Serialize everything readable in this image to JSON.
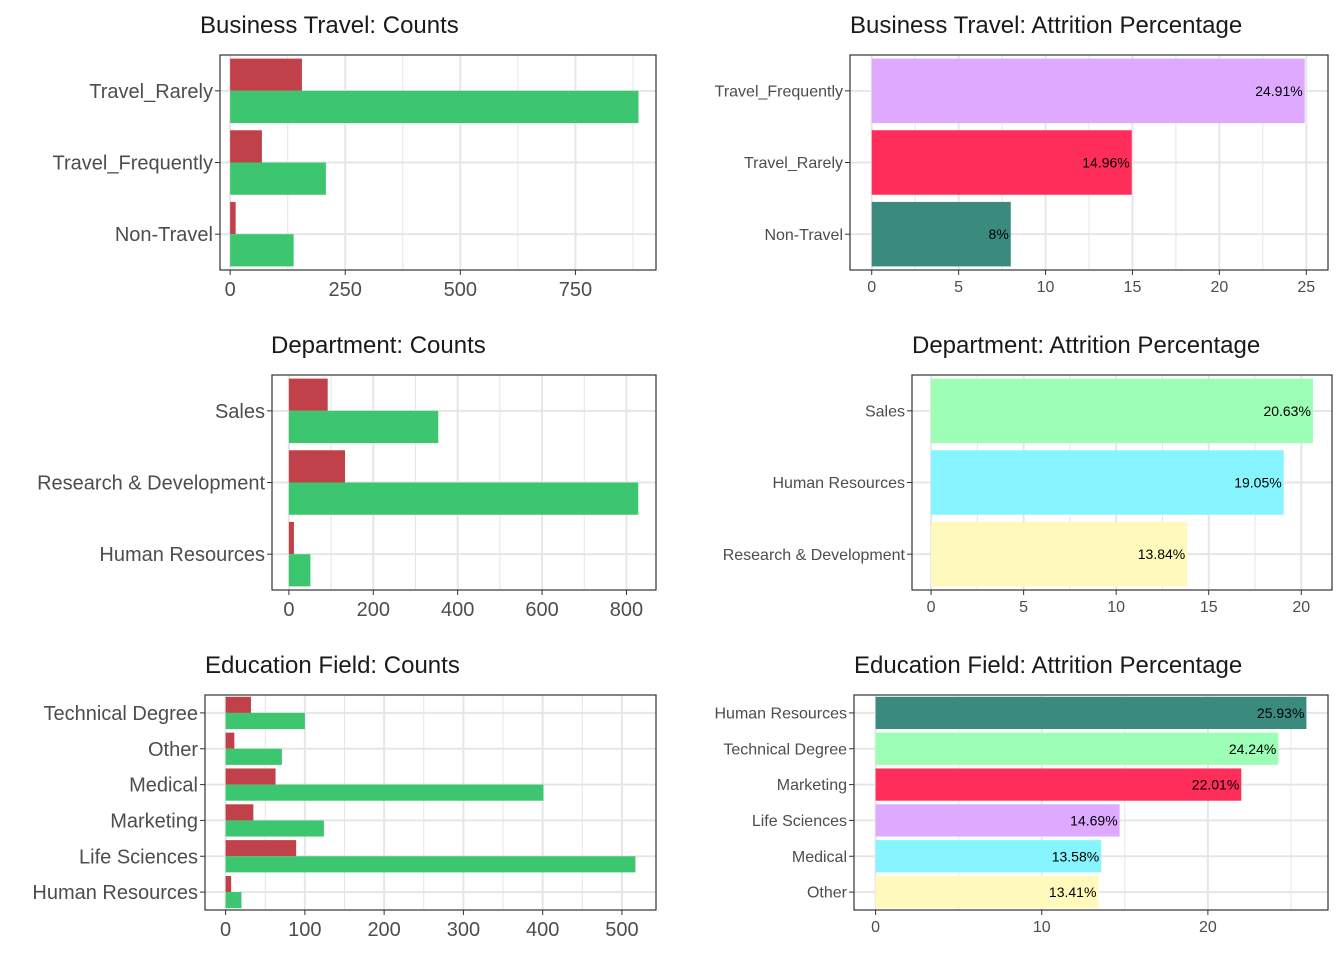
{
  "colors": {
    "attrition_yes": "#C0414A",
    "attrition_no": "#3CC66F",
    "grid": "#E6E6E6",
    "frame": "#333333",
    "text": "#1A1A1A",
    "tick_text": "#4D4D4D"
  },
  "chart_data": [
    {
      "id": "bt-counts",
      "type": "bar",
      "orientation": "horizontal",
      "title": "Business Travel: Counts",
      "categories": [
        "Non-Travel",
        "Travel_Frequently",
        "Travel_Rarely"
      ],
      "series": [
        {
          "color": "#C0414A",
          "values": [
            12,
            69,
            156
          ]
        },
        {
          "color": "#3CC66F",
          "values": [
            138,
            208,
            887
          ]
        }
      ],
      "xlim": [
        -22,
        925
      ],
      "xticks": [
        0,
        250,
        500,
        750
      ],
      "xtick_labels": [
        "0",
        "250",
        "500",
        "750"
      ],
      "grid": true
    },
    {
      "id": "bt-pct",
      "type": "bar",
      "orientation": "horizontal",
      "title": "Business Travel: Attrition Percentage",
      "categories": [
        "Non-Travel",
        "Travel_Rarely",
        "Travel_Frequently"
      ],
      "values": [
        8,
        14.96,
        24.91
      ],
      "data_labels": [
        "8%",
        "14.96%",
        "24.91%"
      ],
      "colors": [
        "#3A8A7E",
        "#FF2D5A",
        "#DEAAFF"
      ],
      "xlim": [
        -1.25,
        26.25
      ],
      "xticks": [
        0,
        5,
        10,
        15,
        20,
        25
      ],
      "xtick_labels": [
        "0",
        "5",
        "10",
        "15",
        "20",
        "25"
      ],
      "grid": true
    },
    {
      "id": "dept-counts",
      "type": "bar",
      "orientation": "horizontal",
      "title": "Department: Counts",
      "categories": [
        "Human Resources",
        "Research & Development",
        "Sales"
      ],
      "series": [
        {
          "color": "#C0414A",
          "values": [
            12,
            133,
            92
          ]
        },
        {
          "color": "#3CC66F",
          "values": [
            51,
            828,
            354
          ]
        }
      ],
      "xlim": [
        -40,
        870
      ],
      "xticks": [
        0,
        200,
        400,
        600,
        800
      ],
      "xtick_labels": [
        "0",
        "200",
        "400",
        "600",
        "800"
      ],
      "grid": true
    },
    {
      "id": "dept-pct",
      "type": "bar",
      "orientation": "horizontal",
      "title": "Department: Attrition Percentage",
      "categories": [
        "Research & Development",
        "Human Resources",
        "Sales"
      ],
      "values": [
        13.84,
        19.05,
        20.63
      ],
      "data_labels": [
        "13.84%",
        "19.05%",
        "20.63%"
      ],
      "colors": [
        "#FFFABB",
        "#86F5FF",
        "#9CFFB5"
      ],
      "xlim": [
        -1.03,
        21.66
      ],
      "xticks": [
        0,
        5,
        10,
        15,
        20
      ],
      "xtick_labels": [
        "0",
        "5",
        "10",
        "15",
        "20"
      ],
      "grid": true
    },
    {
      "id": "edu-counts",
      "type": "bar",
      "orientation": "horizontal",
      "title": "Education Field: Counts",
      "categories": [
        "Human Resources",
        "Life Sciences",
        "Marketing",
        "Medical",
        "Other",
        "Technical Degree"
      ],
      "series": [
        {
          "color": "#C0414A",
          "values": [
            7,
            89,
            35,
            63,
            11,
            32
          ]
        },
        {
          "color": "#3CC66F",
          "values": [
            20,
            517,
            124,
            401,
            71,
            100
          ]
        }
      ],
      "xlim": [
        -26,
        543
      ],
      "xticks": [
        0,
        100,
        200,
        300,
        400,
        500
      ],
      "xtick_labels": [
        "0",
        "100",
        "200",
        "300",
        "400",
        "500"
      ],
      "grid": true
    },
    {
      "id": "edu-pct",
      "type": "bar",
      "orientation": "horizontal",
      "title": "Education Field: Attrition Percentage",
      "categories": [
        "Other",
        "Medical",
        "Life Sciences",
        "Marketing",
        "Technical Degree",
        "Human Resources"
      ],
      "values": [
        13.41,
        13.58,
        14.69,
        22.01,
        24.24,
        25.93
      ],
      "data_labels": [
        "13.41%",
        "13.58%",
        "14.69%",
        "22.01%",
        "24.24%",
        "25.93%"
      ],
      "colors": [
        "#FFFABB",
        "#86F5FF",
        "#DEAAFF",
        "#FF2D5A",
        "#9CFFB5",
        "#3A8A7E"
      ],
      "xlim": [
        -1.3,
        27.23
      ],
      "xticks": [
        0,
        10,
        20
      ],
      "xtick_labels": [
        "0",
        "10",
        "20"
      ],
      "grid": true
    }
  ]
}
